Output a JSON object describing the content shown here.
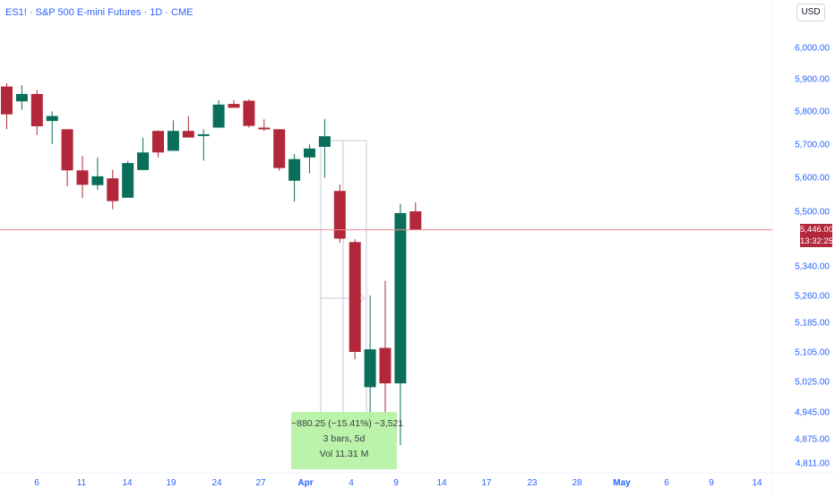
{
  "header": {
    "symbol": "ES1!",
    "description": "S&P 500 E-mini Futures",
    "interval": "1D",
    "exchange": "CME",
    "title": "ES1! · S&P 500 E-mini Futures · 1D · CME"
  },
  "currency": "USD",
  "last_price": {
    "value": "5,446.00",
    "countdown": "13:32:25"
  },
  "measure": {
    "line1": "−880.25 (−15.41%) −3,521",
    "line2": "3 bars, 5d",
    "line3": "Vol 11.31 M"
  },
  "colors": {
    "up": "#0b6e5a",
    "down": "#b2283a",
    "price_line": "#e98b95",
    "axis_text": "#2962ff",
    "measure_fill": "#b2f2a0"
  },
  "chart_data": {
    "type": "candlestick",
    "price_axis_ticks": [
      "6,000.00",
      "5,900.00",
      "5,800.00",
      "5,700.00",
      "5,600.00",
      "5,500.00",
      "5,340.00",
      "5,260.00",
      "5,185.00",
      "5,105.00",
      "5,025.00",
      "4,945.00",
      "4,875.00",
      "4,811.00"
    ],
    "time_axis_ticks": [
      "6",
      "11",
      "14",
      "19",
      "24",
      "27",
      "Apr",
      "4",
      "9",
      "14",
      "17",
      "23",
      "28",
      "May",
      "6",
      "9",
      "14"
    ],
    "candles": [
      {
        "o": 5876,
        "h": 5886,
        "l": 5745,
        "c": 5790
      },
      {
        "o": 5830,
        "h": 5880,
        "l": 5804,
        "c": 5853
      },
      {
        "o": 5853,
        "h": 5865,
        "l": 5728,
        "c": 5754
      },
      {
        "o": 5770,
        "h": 5799,
        "l": 5700,
        "c": 5785
      },
      {
        "o": 5745,
        "h": 5745,
        "l": 5574,
        "c": 5621
      },
      {
        "o": 5621,
        "h": 5665,
        "l": 5539,
        "c": 5578
      },
      {
        "o": 5577,
        "h": 5660,
        "l": 5563,
        "c": 5603
      },
      {
        "o": 5597,
        "h": 5623,
        "l": 5506,
        "c": 5530
      },
      {
        "o": 5540,
        "h": 5649,
        "l": 5540,
        "c": 5643
      },
      {
        "o": 5622,
        "h": 5720,
        "l": 5622,
        "c": 5675
      },
      {
        "o": 5740,
        "h": 5742,
        "l": 5660,
        "c": 5675
      },
      {
        "o": 5680,
        "h": 5772,
        "l": 5680,
        "c": 5740
      },
      {
        "o": 5740,
        "h": 5785,
        "l": 5722,
        "c": 5720
      },
      {
        "o": 5725,
        "h": 5745,
        "l": 5650,
        "c": 5730
      },
      {
        "o": 5750,
        "h": 5834,
        "l": 5750,
        "c": 5820
      },
      {
        "o": 5822,
        "h": 5834,
        "l": 5814,
        "c": 5810
      },
      {
        "o": 5832,
        "h": 5836,
        "l": 5750,
        "c": 5755
      },
      {
        "o": 5750,
        "h": 5775,
        "l": 5740,
        "c": 5745
      },
      {
        "o": 5745,
        "h": 5745,
        "l": 5620,
        "c": 5628
      },
      {
        "o": 5590,
        "h": 5670,
        "l": 5529,
        "c": 5655
      },
      {
        "o": 5660,
        "h": 5699,
        "l": 5612,
        "c": 5687
      },
      {
        "o": 5692,
        "h": 5776,
        "l": 5599,
        "c": 5724
      },
      {
        "o": 5560,
        "h": 5579,
        "l": 5408,
        "c": 5420
      },
      {
        "o": 5410,
        "h": 5418,
        "l": 5085,
        "c": 5105
      },
      {
        "o": 5010,
        "h": 5260,
        "l": 4900,
        "c": 5112
      },
      {
        "o": 5116,
        "h": 5300,
        "l": 4940,
        "c": 5020
      },
      {
        "o": 5020,
        "h": 5522,
        "l": 4858,
        "c": 5495
      },
      {
        "o": 5500,
        "h": 5527,
        "l": 5446,
        "c": 5446
      }
    ]
  }
}
